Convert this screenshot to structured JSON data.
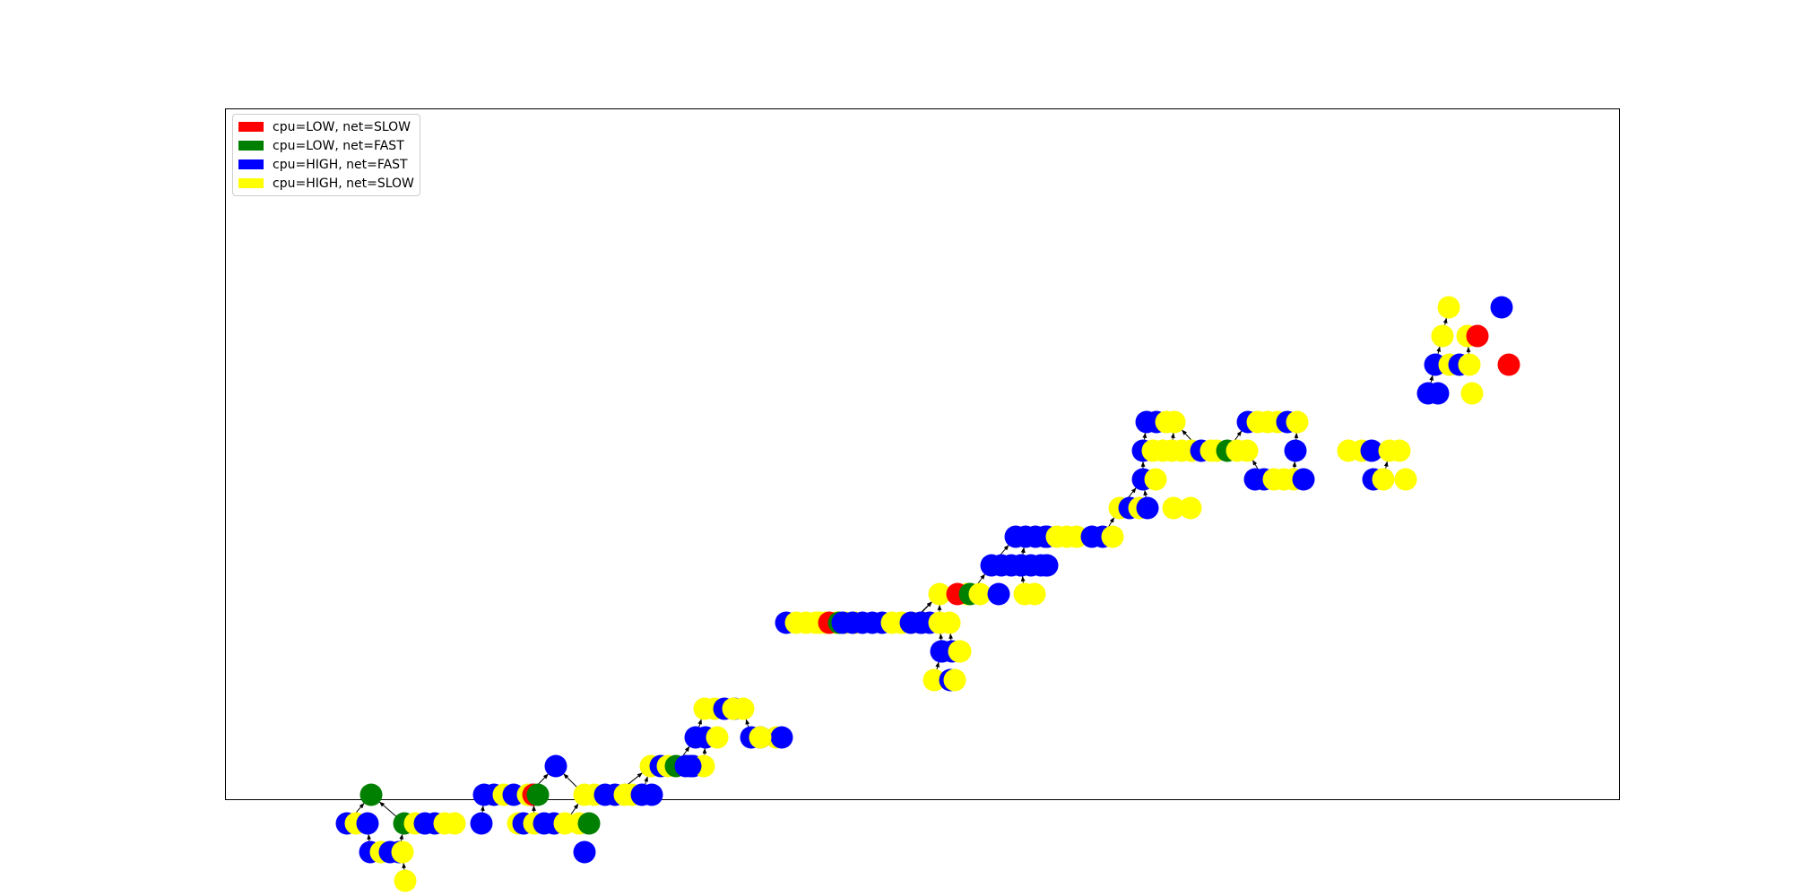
{
  "legend": {
    "placement": "top-left",
    "entries": [
      {
        "label": "cpu=LOW, net=SLOW",
        "color": "#ff0000"
      },
      {
        "label": "cpu=LOW, net=FAST",
        "color": "#008000"
      },
      {
        "label": "cpu=HIGH, net=FAST",
        "color": "#0000ff"
      },
      {
        "label": "cpu=HIGH, net=SLOW",
        "color": "#ffff00"
      }
    ]
  },
  "node_colors": {
    "LS": "#ff0000",
    "LF": "#008000",
    "HF": "#0000ff",
    "HS": "#ffff00"
  },
  "edge_color": "#000000",
  "diagram": {
    "type": "directed-graph",
    "rows": [
      {
        "row": 13,
        "nodes": [
          "HS",
          "HF"
        ]
      },
      {
        "row": 12,
        "nodes": [
          "HS",
          "HS",
          "LS"
        ]
      },
      {
        "row": 11,
        "nodes": [
          "HF",
          "HS",
          "HF",
          "HS",
          "LS"
        ]
      },
      {
        "row": 10,
        "nodes": [
          "HF",
          "HF",
          "HS"
        ]
      },
      {
        "row": 9,
        "nodes": [
          "HS",
          "HF",
          "HF",
          "HS",
          "HF",
          "HS",
          "HS",
          "HS",
          "HF",
          "HS"
        ]
      },
      {
        "row": 8,
        "nodes": [
          "HF",
          "HS",
          "HS",
          "HS",
          "HS",
          "HS",
          "HF",
          "HS",
          "HS",
          "LF",
          "HS",
          "HS",
          "HF",
          "HS",
          "HS",
          "HF",
          "HS",
          "HS"
        ]
      },
      {
        "row": 7,
        "nodes": [
          "HF",
          "HS",
          "HF",
          "HF",
          "HS",
          "HS",
          "HS",
          "HF",
          "HF",
          "HS",
          "HS"
        ]
      },
      {
        "row": 6,
        "nodes": [
          "HS",
          "HF",
          "HS",
          "HF",
          "HS",
          "HS"
        ]
      },
      {
        "row": 5,
        "nodes": [
          "HF",
          "HF",
          "HF",
          "HF",
          "HF",
          "HS",
          "HS",
          "HS",
          "HF",
          "HF",
          "HS"
        ]
      },
      {
        "row": 4,
        "nodes": [
          "HF",
          "HF",
          "HF",
          "HF",
          "HF",
          "HF",
          "HF",
          "HF",
          "HF"
        ]
      },
      {
        "row": 3,
        "nodes": [
          "HS",
          "HS",
          "LS",
          "LF",
          "HS",
          "HF",
          "HS",
          "HS"
        ]
      },
      {
        "row": 2,
        "nodes": [
          "HF",
          "HS",
          "HS",
          "HS",
          "HS",
          "HS",
          "HS",
          "HS",
          "HS",
          "LS",
          "LF",
          "HF",
          "HF",
          "HF",
          "HF",
          "HF",
          "HS",
          "HS",
          "HS",
          "HF",
          "HS",
          "HF",
          "HF",
          "HF",
          "HS",
          "HS"
        ]
      },
      {
        "row": 1,
        "nodes": [
          "HF",
          "HS",
          "HF",
          "HF",
          "HS"
        ]
      },
      {
        "row": 0,
        "nodes": [
          "HS",
          "HF",
          "HS"
        ]
      },
      {
        "row": -1,
        "nodes": [
          "HS",
          "HS",
          "HF",
          "HF",
          "HS",
          "HS"
        ]
      },
      {
        "row": -2,
        "nodes": [
          "HF",
          "HF",
          "HS",
          "HF",
          "HS",
          "HF",
          "HF",
          "HS"
        ]
      },
      {
        "row": -3,
        "nodes": [
          "HS",
          "HF",
          "HS",
          "LF",
          "HF",
          "HF",
          "HS",
          "HF",
          "HF"
        ]
      },
      {
        "row": -4,
        "nodes": [
          "LF",
          "HF",
          "HF",
          "HS",
          "HF",
          "HF",
          "HS",
          "LS",
          "LF",
          "HS",
          "HS",
          "HF",
          "HF",
          "HS",
          "HS",
          "HF",
          "HF"
        ]
      },
      {
        "row": -5,
        "nodes": [
          "HF",
          "HS",
          "HF",
          "LF",
          "HS",
          "HF",
          "HF",
          "HS",
          "HS",
          "HF",
          "HS",
          "HF",
          "HS",
          "HF",
          "HF",
          "HS",
          "HS",
          "LF"
        ]
      },
      {
        "row": -6,
        "nodes": [
          "HF",
          "HS",
          "HF",
          "HF",
          "HS",
          "HF"
        ]
      },
      {
        "row": -7,
        "nodes": [
          "HS"
        ]
      }
    ]
  }
}
